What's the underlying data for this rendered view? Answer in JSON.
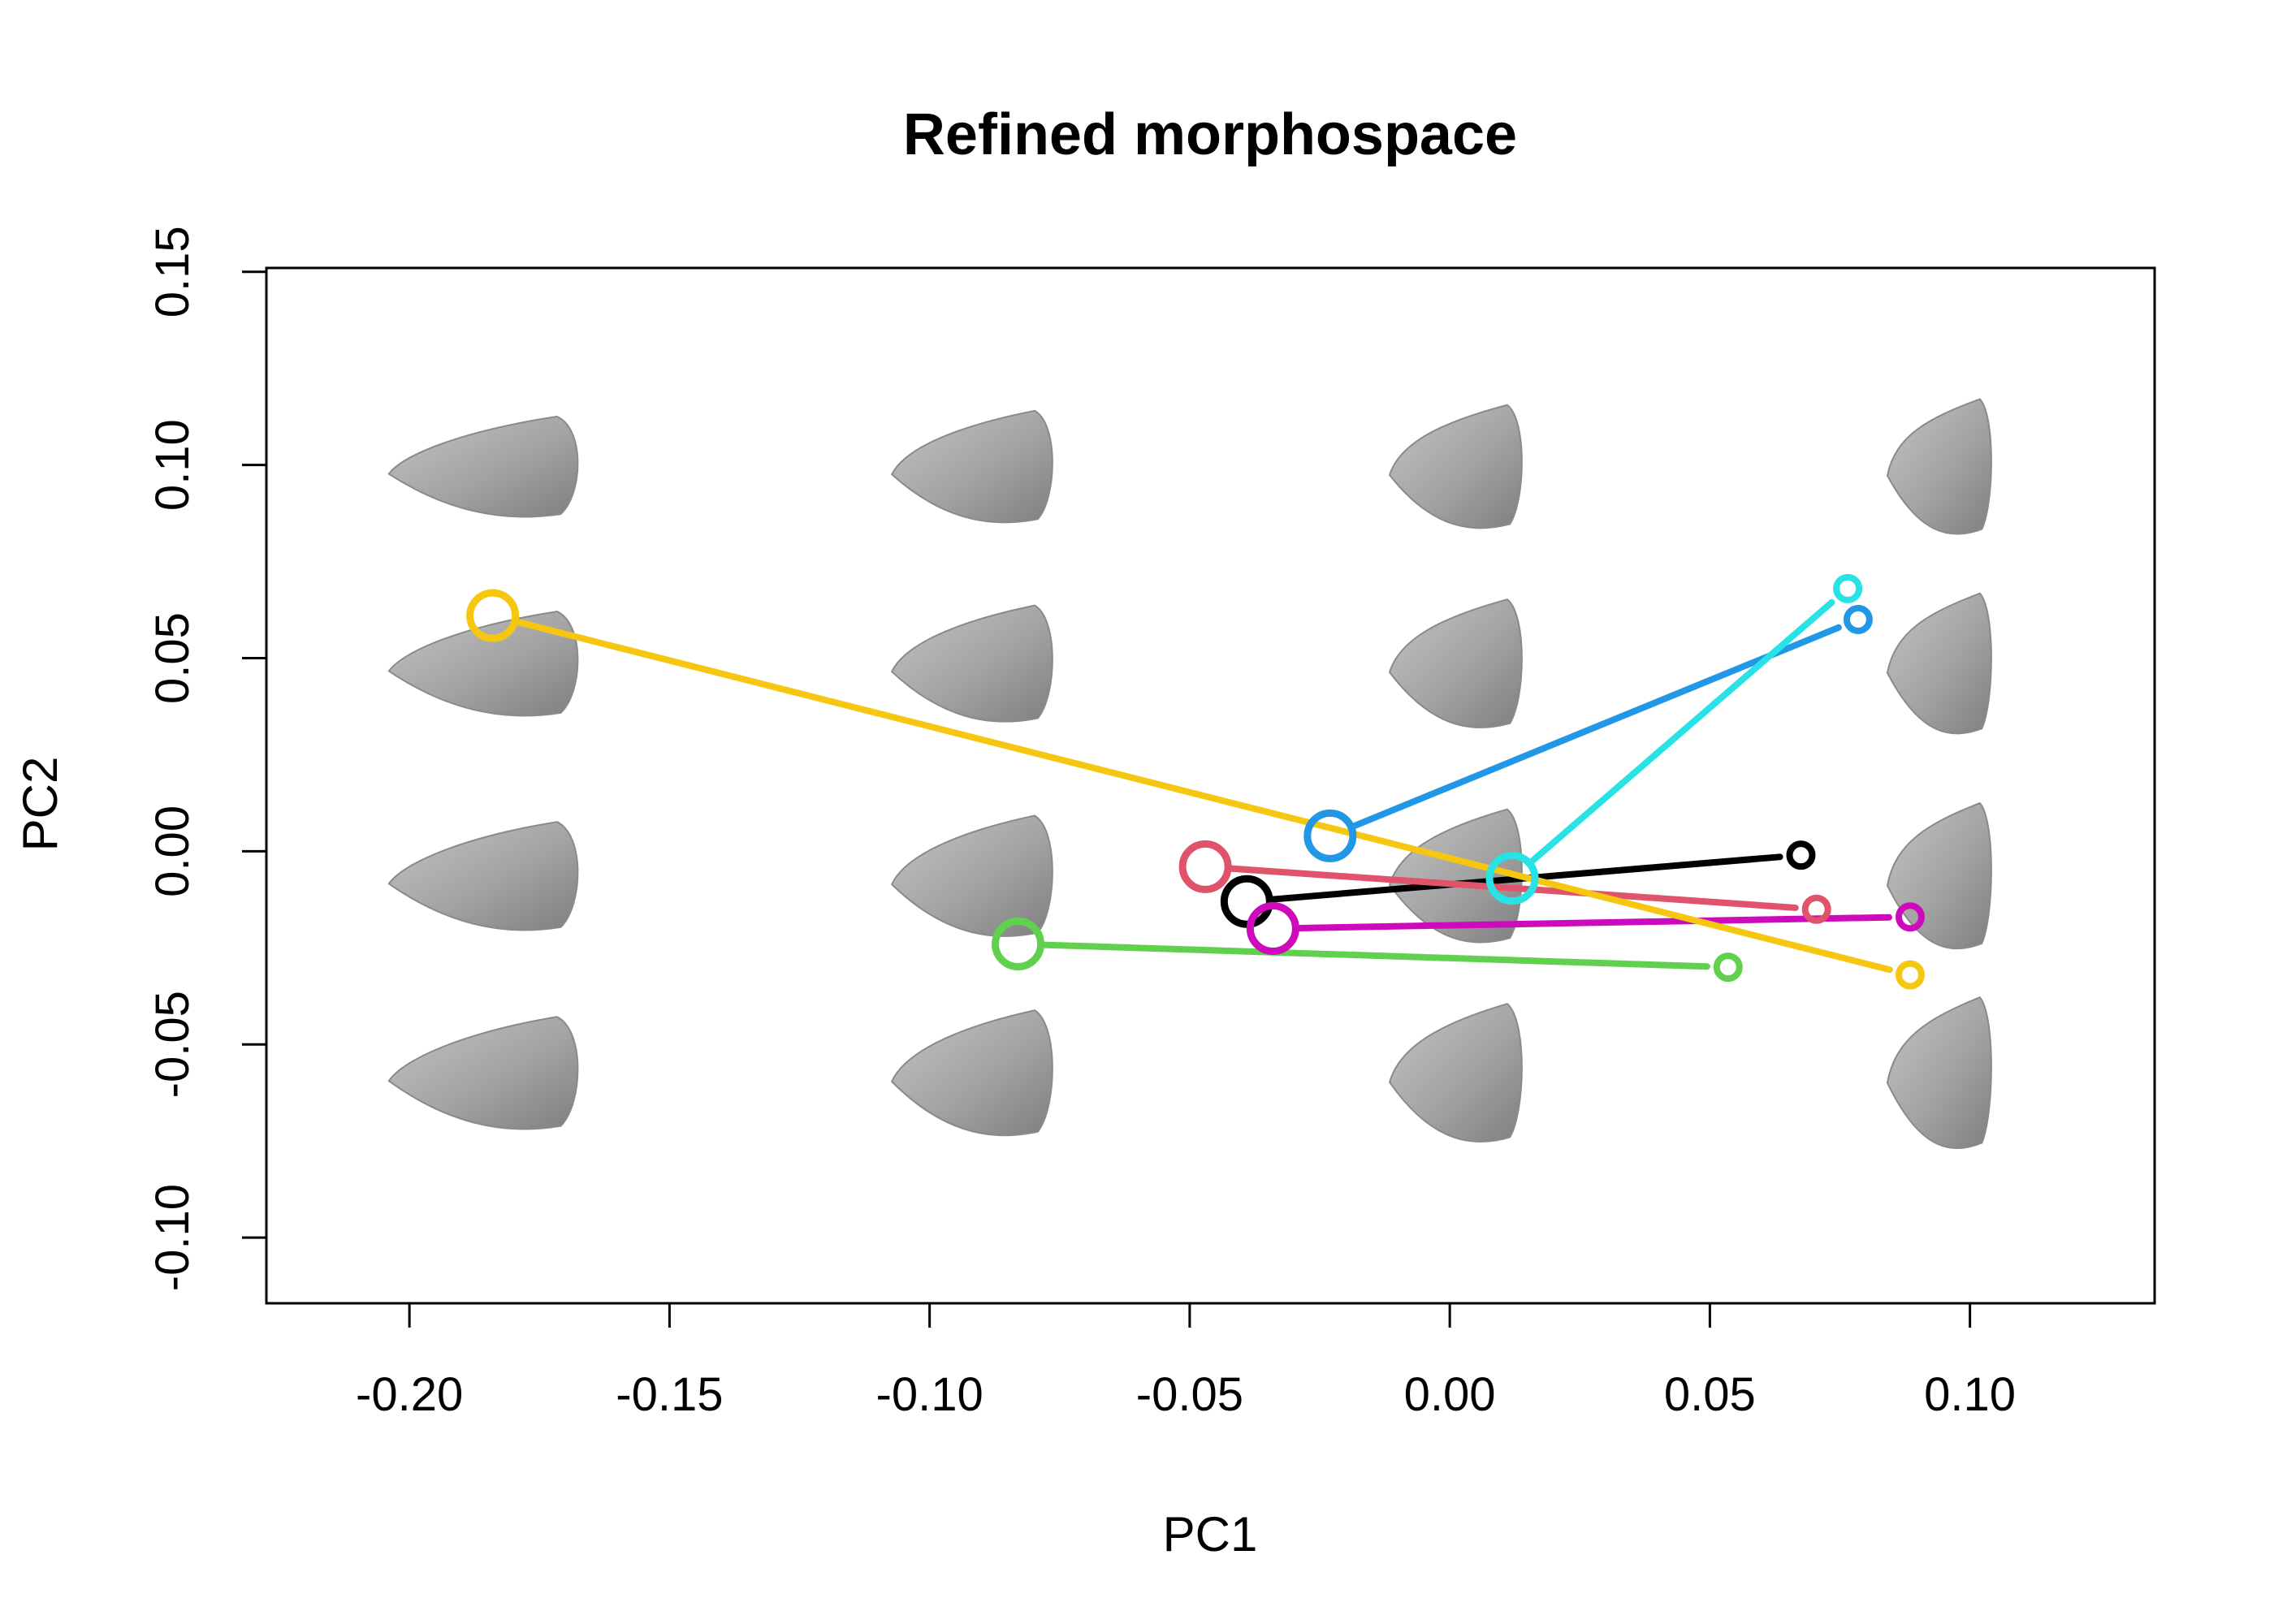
{
  "chart_data": {
    "type": "scatter",
    "title": "Refined morphospace",
    "xlabel": "PC1",
    "ylabel": "PC2",
    "xlim": [
      -0.2275,
      0.1355
    ],
    "ylim": [
      -0.117,
      0.151
    ],
    "x_ticks": [
      "-0.20",
      "-0.15",
      "-0.10",
      "-0.05",
      "0.00",
      "0.05",
      "0.10"
    ],
    "x_tick_values": [
      -0.2,
      -0.15,
      -0.1,
      -0.05,
      0.0,
      0.05,
      0.1
    ],
    "y_ticks": [
      "-0.10",
      "-0.05",
      "0.00",
      "0.05",
      "0.10",
      "0.15"
    ],
    "y_tick_values": [
      -0.1,
      -0.05,
      0.0,
      0.05,
      0.1,
      0.15
    ],
    "grid": false,
    "legend": "none",
    "background_shapes": {
      "description": "3D shape renders on a 4x4 grid",
      "x": [
        -0.186,
        -0.092,
        0.001,
        0.094
      ],
      "y": [
        0.099,
        0.048,
        -0.007,
        -0.058
      ],
      "color": "#9a9a9a"
    },
    "series": [
      {
        "color": "#000000",
        "start": [
          -0.039,
          -0.013
        ],
        "end": [
          0.0675,
          -0.001
        ]
      },
      {
        "color": "#DF536B",
        "start": [
          -0.047,
          -0.004
        ],
        "end": [
          0.0705,
          -0.015
        ]
      },
      {
        "color": "#61D04F",
        "start": [
          -0.083,
          -0.024
        ],
        "end": [
          0.0535,
          -0.03
        ]
      },
      {
        "color": "#2297E6",
        "start": [
          -0.023,
          0.004
        ],
        "end": [
          0.0785,
          0.06
        ]
      },
      {
        "color": "#28E2E5",
        "start": [
          0.012,
          -0.007
        ],
        "end": [
          0.0765,
          0.068
        ]
      },
      {
        "color": "#CD0BBC",
        "start": [
          -0.034,
          -0.02
        ],
        "end": [
          0.0885,
          -0.017
        ]
      },
      {
        "color": "#F5C710",
        "start": [
          -0.184,
          0.061
        ],
        "end": [
          0.0885,
          -0.032
        ]
      }
    ]
  }
}
